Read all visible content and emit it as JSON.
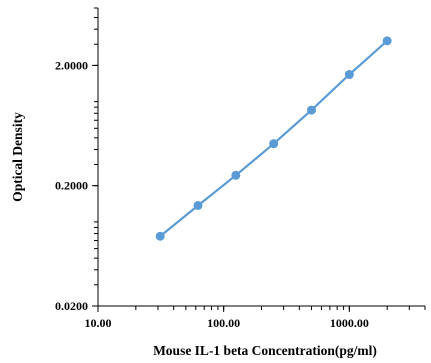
{
  "chart_data": {
    "type": "line",
    "xlabel": "Mouse IL-1 beta Concentration(pg/ml)",
    "ylabel": "Optical Density",
    "x_scale": "log",
    "y_scale": "log",
    "xlim": [
      10,
      4000
    ],
    "ylim": [
      0.02,
      6
    ],
    "x_ticks": [
      {
        "value": 10,
        "label": "10.00"
      },
      {
        "value": 100,
        "label": "100.00"
      },
      {
        "value": 1000,
        "label": "1000.00"
      }
    ],
    "y_ticks": [
      {
        "value": 0.02,
        "label": "0.0200"
      },
      {
        "value": 0.2,
        "label": "0.2000"
      },
      {
        "value": 2,
        "label": "2.0000"
      }
    ],
    "grid": false,
    "legend": "none",
    "series": [
      {
        "color": "#5b9bd5",
        "points": [
          {
            "x": 31.25,
            "y": 0.076
          },
          {
            "x": 62.5,
            "y": 0.137
          },
          {
            "x": 125,
            "y": 0.244
          },
          {
            "x": 250,
            "y": 0.447
          },
          {
            "x": 500,
            "y": 0.85
          },
          {
            "x": 1000,
            "y": 1.68
          },
          {
            "x": 2000,
            "y": 3.2
          }
        ]
      }
    ]
  }
}
